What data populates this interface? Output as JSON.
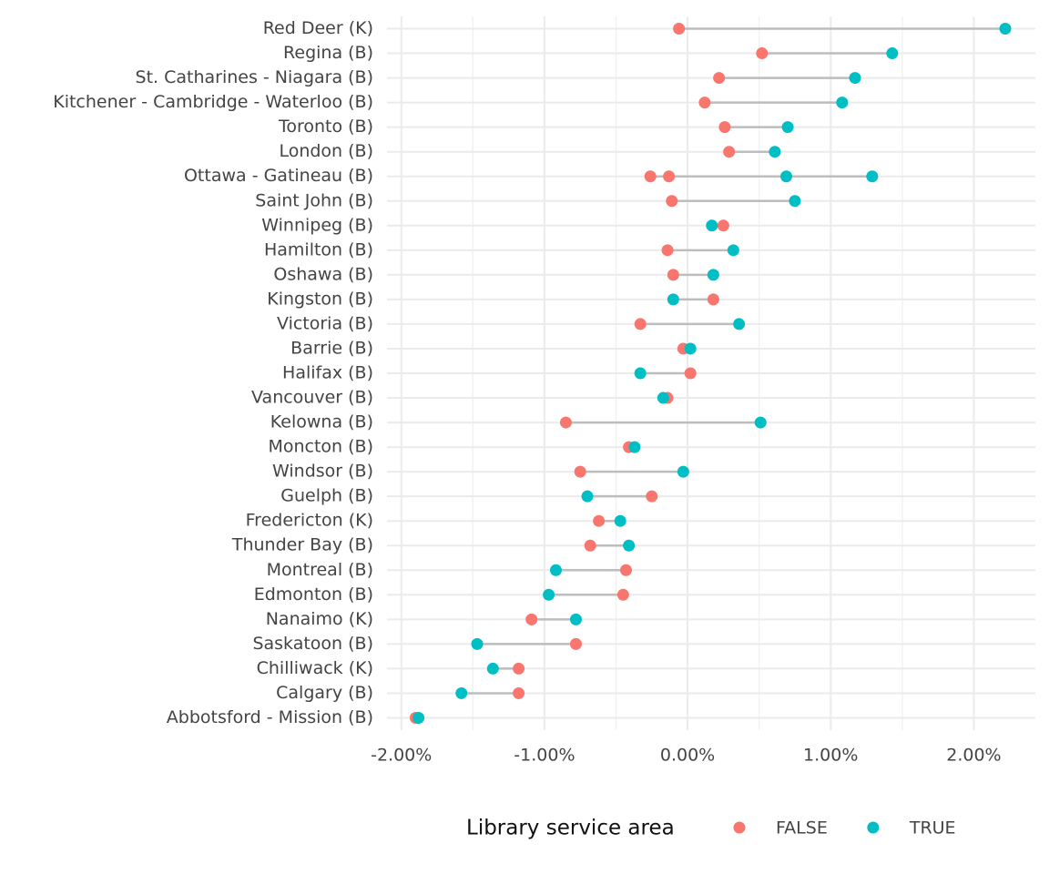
{
  "chart_data": {
    "type": "dumbbell",
    "categories": [
      "Red Deer (K)",
      "Regina (B)",
      "St. Catharines - Niagara (B)",
      "Kitchener - Cambridge - Waterloo (B)",
      "Toronto (B)",
      "London (B)",
      "Ottawa - Gatineau (B)",
      "Saint John (B)",
      "Winnipeg (B)",
      "Hamilton (B)",
      "Oshawa (B)",
      "Kingston (B)",
      "Victoria (B)",
      "Barrie (B)",
      "Halifax (B)",
      "Vancouver (B)",
      "Kelowna (B)",
      "Moncton (B)",
      "Windsor (B)",
      "Guelph (B)",
      "Fredericton (K)",
      "Thunder Bay (B)",
      "Montreal (B)",
      "Edmonton (B)",
      "Nanaimo (K)",
      "Saskatoon (B)",
      "Chilliwack (K)",
      "Calgary (B)",
      "Abbotsford - Mission (B)"
    ],
    "series": [
      {
        "name": "FALSE",
        "color": "#F8766D",
        "values": [
          -0.06,
          0.52,
          0.22,
          0.12,
          0.26,
          0.29,
          [
            -0.26,
            -0.13
          ],
          -0.11,
          0.25,
          -0.14,
          -0.1,
          0.18,
          -0.33,
          -0.03,
          0.02,
          -0.14,
          -0.85,
          -0.41,
          -0.75,
          -0.25,
          -0.62,
          -0.68,
          -0.43,
          -0.45,
          -1.09,
          -0.78,
          -1.18,
          -1.18,
          -1.9
        ]
      },
      {
        "name": "TRUE",
        "color": "#00BFC4",
        "values": [
          2.22,
          1.43,
          1.17,
          1.08,
          0.7,
          0.61,
          [
            0.69,
            1.29
          ],
          0.75,
          0.17,
          0.32,
          0.18,
          -0.1,
          0.36,
          0.02,
          -0.33,
          -0.17,
          0.51,
          -0.37,
          -0.03,
          -0.7,
          -0.47,
          -0.41,
          -0.92,
          -0.97,
          -0.78,
          -1.47,
          -1.36,
          -1.58,
          -1.88
        ]
      }
    ],
    "xlim": [
      -2.1,
      2.43
    ],
    "xticks": [
      {
        "value": -2,
        "label": "-2.00%"
      },
      {
        "value": -1,
        "label": "-1.00%"
      },
      {
        "value": 0,
        "label": "0.00%"
      },
      {
        "value": 1,
        "label": "1.00%"
      },
      {
        "value": 2,
        "label": "2.00%"
      }
    ],
    "legend_title": "Library service area",
    "legend_position": "bottom",
    "grid": true
  }
}
